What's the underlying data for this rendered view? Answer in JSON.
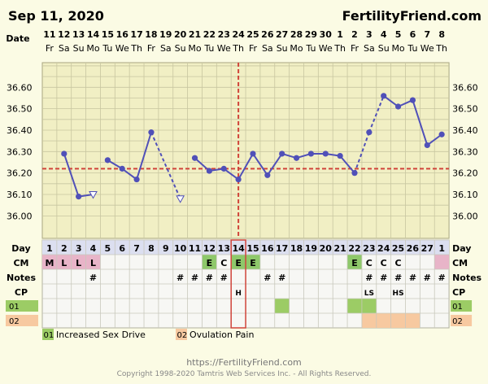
{
  "header": {
    "date": "Sep 11, 2020",
    "brand": "FertilityFriend.com"
  },
  "chart_data": {
    "type": "line",
    "row_labels": {
      "date": "Date",
      "day": "Day",
      "cm": "CM",
      "notes": "Notes",
      "cp": "CP"
    },
    "dates": [
      {
        "d": "11",
        "w": "Fr"
      },
      {
        "d": "12",
        "w": "Sa"
      },
      {
        "d": "13",
        "w": "Su"
      },
      {
        "d": "14",
        "w": "Mo"
      },
      {
        "d": "15",
        "w": "Tu"
      },
      {
        "d": "16",
        "w": "We"
      },
      {
        "d": "17",
        "w": "Th"
      },
      {
        "d": "18",
        "w": "Fr"
      },
      {
        "d": "19",
        "w": "Sa"
      },
      {
        "d": "20",
        "w": "Su"
      },
      {
        "d": "21",
        "w": "Mo"
      },
      {
        "d": "22",
        "w": "Tu"
      },
      {
        "d": "23",
        "w": "We"
      },
      {
        "d": "24",
        "w": "Th"
      },
      {
        "d": "25",
        "w": "Fr"
      },
      {
        "d": "26",
        "w": "Sa"
      },
      {
        "d": "27",
        "w": "Su"
      },
      {
        "d": "28",
        "w": "Mo"
      },
      {
        "d": "29",
        "w": "Tu"
      },
      {
        "d": "30",
        "w": "We"
      },
      {
        "d": "1",
        "w": "Th"
      },
      {
        "d": "2",
        "w": "Fr"
      },
      {
        "d": "3",
        "w": "Sa"
      },
      {
        "d": "4",
        "w": "Su"
      },
      {
        "d": "5",
        "w": "Mo"
      },
      {
        "d": "6",
        "w": "Tu"
      },
      {
        "d": "7",
        "w": "We"
      },
      {
        "d": "8",
        "w": "Th"
      }
    ],
    "cycle_days": [
      "1",
      "2",
      "3",
      "4",
      "5",
      "6",
      "7",
      "8",
      "9",
      "10",
      "11",
      "12",
      "13",
      "14",
      "15",
      "16",
      "17",
      "18",
      "19",
      "20",
      "21",
      "22",
      "23",
      "24",
      "25",
      "26",
      "27",
      "1"
    ],
    "y_ticks": [
      "36.00",
      "36.10",
      "36.20",
      "36.30",
      "36.40",
      "36.50",
      "36.60"
    ],
    "ylim": [
      35.895,
      36.715
    ],
    "temperatures": [
      null,
      36.29,
      36.09,
      36.1,
      36.26,
      36.22,
      36.17,
      36.39,
      null,
      36.08,
      36.27,
      36.21,
      36.22,
      36.17,
      36.29,
      36.19,
      36.29,
      36.27,
      36.29,
      36.29,
      36.28,
      36.2,
      36.39,
      36.56,
      36.51,
      36.54,
      36.33,
      36.38
    ],
    "discarded_days": [
      3,
      9
    ],
    "dashed_segments": [
      [
        7,
        9
      ],
      [
        21,
        22
      ],
      [
        22,
        23
      ]
    ],
    "coverline": 36.22,
    "ovulation_day_index": 13,
    "cm": [
      "M",
      "L",
      "L",
      "L",
      "",
      "",
      "",
      "",
      "",
      "",
      "",
      "E",
      "C",
      "E",
      "E",
      "",
      "",
      "",
      "",
      "",
      "",
      "E",
      "C",
      "C",
      "C",
      "",
      "",
      ""
    ],
    "notes": [
      "",
      "",
      "",
      "#",
      "",
      "",
      "",
      "",
      "",
      "#",
      "#",
      "#",
      "#",
      "",
      "",
      "#",
      "#",
      "",
      "",
      "",
      "",
      "",
      "#",
      "#",
      "#",
      "#",
      "#",
      "#"
    ],
    "cp": [
      "",
      "",
      "",
      "",
      "",
      "",
      "",
      "",
      "",
      "",
      "",
      "",
      "",
      "H",
      "",
      "",
      "",
      "",
      "",
      "",
      "",
      "",
      "LS",
      "",
      "HS",
      "",
      "",
      ""
    ],
    "row_01_marks": [
      16,
      21,
      22
    ],
    "row_02_marks": [
      22,
      23,
      24,
      25
    ],
    "legend": [
      {
        "code": "01",
        "label": "Increased Sex Drive",
        "color": "#9ccc65"
      },
      {
        "code": "02",
        "label": "Ovulation Pain",
        "color": "#f7c9a0"
      }
    ],
    "colors": {
      "line": "#5050b8",
      "coverline": "#d0443a",
      "cm_menstrual": "#e8b4c8",
      "cm_egg": "#8ec86a",
      "row01": "#9ccc65",
      "row02": "#f7c9a0",
      "chart_bg": "#f1efc4",
      "grid": "#c8c6a0"
    }
  },
  "footer": {
    "url": "https://FertilityFriend.com",
    "copyright": "Copyright 1998-2020 Tamtris Web Services Inc. - All Rights Reserved."
  }
}
